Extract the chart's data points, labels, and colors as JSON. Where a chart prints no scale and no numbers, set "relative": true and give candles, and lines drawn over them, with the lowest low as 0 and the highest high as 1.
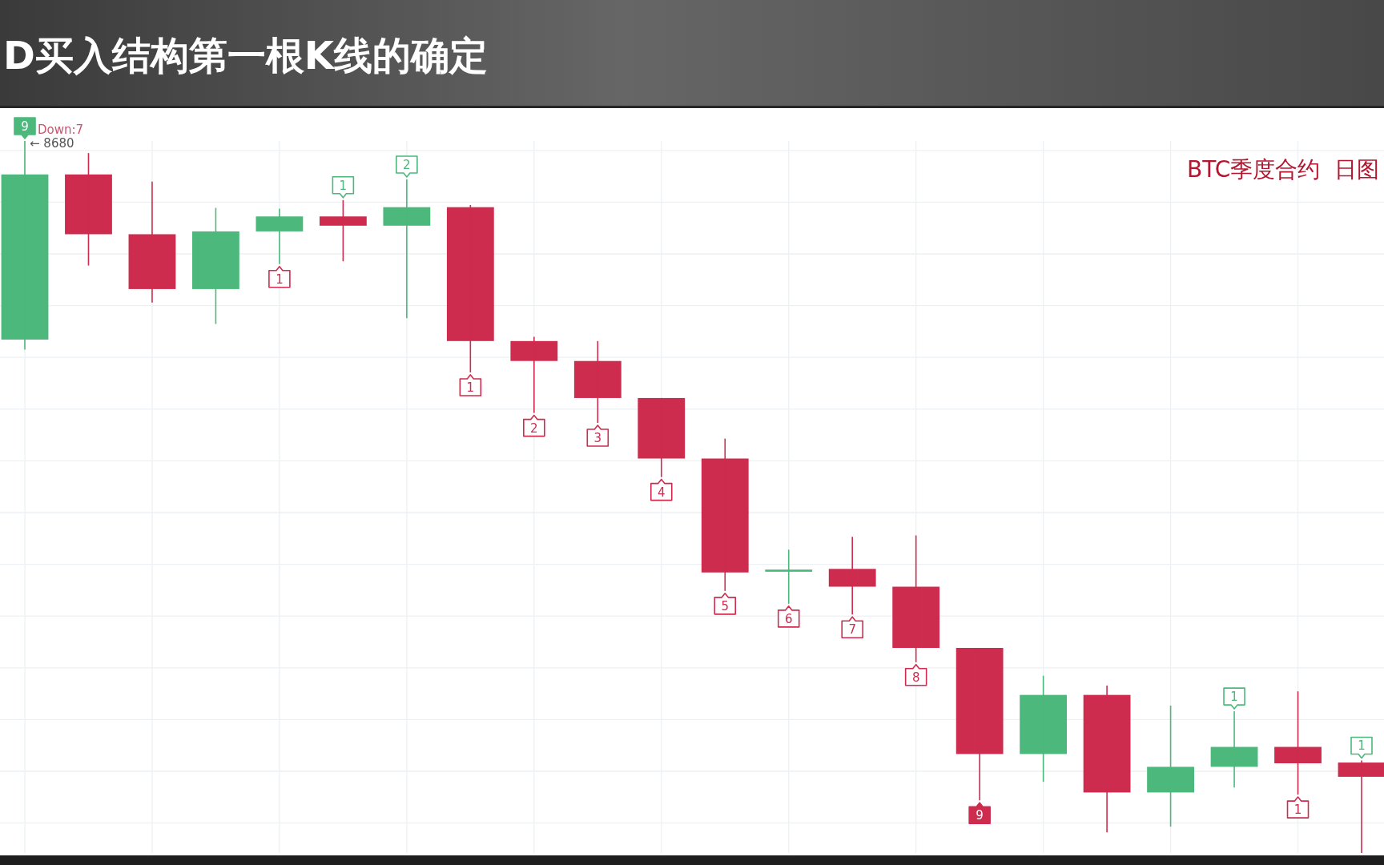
{
  "chart_data": {
    "type": "candlestick",
    "title": "D买入结构第一根K线的确定",
    "subtitle": "BTC季度合约  日图",
    "categories": [
      null,
      null,
      null,
      null,
      null,
      null,
      null,
      null,
      null,
      null,
      null,
      null,
      null,
      null,
      null,
      null,
      null,
      null,
      null,
      null,
      null,
      null
    ],
    "ohlc": [
      [
        0.721,
        1.0,
        0.707,
        0.953
      ],
      [
        0.953,
        0.983,
        0.825,
        0.869
      ],
      [
        0.869,
        0.943,
        0.773,
        0.792
      ],
      [
        0.792,
        0.906,
        0.743,
        0.873
      ],
      [
        0.873,
        0.905,
        0.827,
        0.894
      ],
      [
        0.894,
        0.917,
        0.831,
        0.881
      ],
      [
        0.881,
        0.946,
        0.751,
        0.907
      ],
      [
        0.907,
        0.91,
        0.675,
        0.719
      ],
      [
        0.719,
        0.725,
        0.618,
        0.691
      ],
      [
        0.691,
        0.719,
        0.604,
        0.639
      ],
      [
        0.639,
        0.639,
        0.528,
        0.554
      ],
      [
        0.554,
        0.582,
        0.368,
        0.394
      ],
      [
        0.395,
        0.426,
        0.35,
        0.398
      ],
      [
        0.399,
        0.444,
        0.335,
        0.374
      ],
      [
        0.374,
        0.446,
        0.268,
        0.288
      ],
      [
        0.288,
        0.288,
        0.074,
        0.139
      ],
      [
        0.139,
        0.249,
        0.1,
        0.222
      ],
      [
        0.222,
        0.235,
        0.029,
        0.085
      ],
      [
        0.085,
        0.207,
        0.037,
        0.121
      ],
      [
        0.121,
        0.199,
        0.092,
        0.149
      ],
      [
        0.149,
        0.227,
        0.082,
        0.126
      ],
      [
        0.127,
        0.13,
        0.0,
        0.107
      ]
    ],
    "colors": [
      "#4cb87b",
      "#cd2c4e",
      "#cd2c4e",
      "#4cb87b",
      "#4cb87b",
      "#cd2c4e",
      "#4cb87b",
      "#cd2c4e",
      "#cd2c4e",
      "#cd2c4e",
      "#cd2c4e",
      "#cd2c4e",
      "#4cb87b",
      "#cd2c4e",
      "#cd2c4e",
      "#cd2c4e",
      "#4cb87b",
      "#cd2c4e",
      "#4cb87b",
      "#4cb87b",
      "#cd2c4e",
      "#cd2c4e"
    ],
    "relative": true,
    "grid": true,
    "annotations": [
      "Down:7",
      "← 8680",
      {
        "text": "9",
        "y": 1.0
      },
      {
        "text": "1",
        "y": 0.827
      },
      {
        "text": "1",
        "y": 0.917
      },
      {
        "text": "2",
        "y": 0.946
      },
      {
        "text": "1",
        "y": 0.675
      },
      {
        "text": "2",
        "y": 0.618
      },
      {
        "text": "3",
        "y": 0.604
      },
      {
        "text": "4",
        "y": 0.528
      },
      {
        "text": "5",
        "y": 0.368
      },
      {
        "text": "6",
        "y": 0.35
      },
      {
        "text": "7",
        "y": 0.335
      },
      {
        "text": "8",
        "y": 0.268
      },
      {
        "text": "9",
        "y": 0.074
      },
      {
        "text": "1",
        "y": 0.199
      },
      {
        "text": "1",
        "y": 0.082
      },
      {
        "text": "1",
        "y": 0.13
      }
    ]
  }
}
